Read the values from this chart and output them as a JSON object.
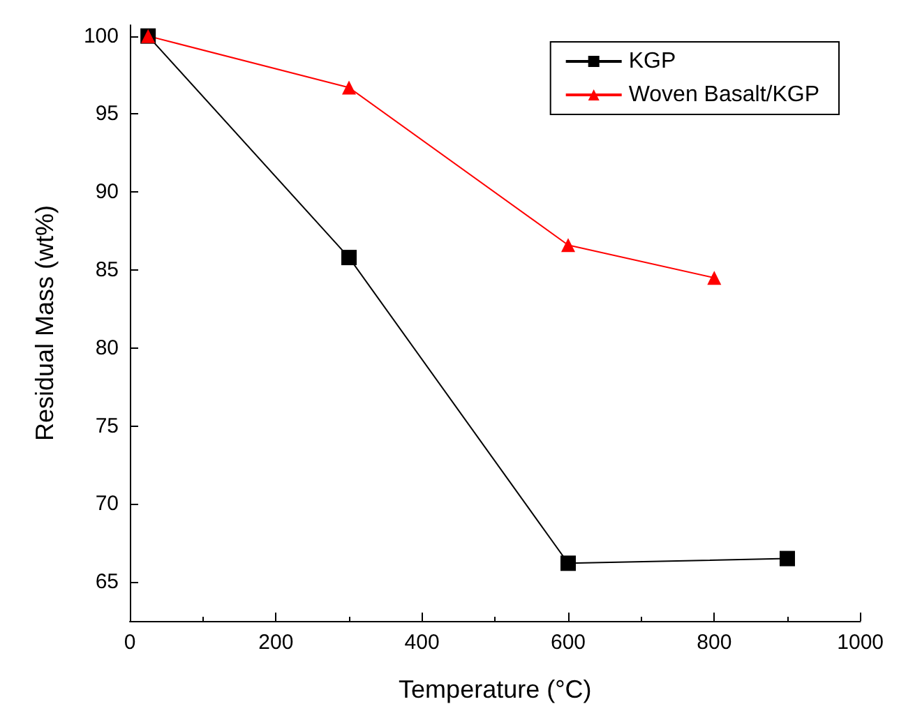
{
  "chart_data": {
    "type": "line",
    "xlabel": "Temperature (°C)",
    "ylabel": "Residual Mass (wt%)",
    "xlim": [
      0,
      1000
    ],
    "xticks": [
      0,
      200,
      400,
      600,
      800,
      1000
    ],
    "ylim": [
      62.5,
      100.7
    ],
    "yticks": [
      65,
      70,
      75,
      80,
      85,
      90,
      95,
      100
    ],
    "grid": false,
    "legend": "top right",
    "series": [
      {
        "name": "KGP",
        "color": "#000000",
        "marker": "square",
        "x": [
          25,
          300,
          600,
          900
        ],
        "values": [
          100,
          85.8,
          66.2,
          66.5
        ]
      },
      {
        "name": "Woven Basalt/KGP",
        "color": "#ff0000",
        "marker": "triangle",
        "x": [
          25,
          300,
          600,
          800
        ],
        "values": [
          100,
          96.7,
          86.6,
          84.5
        ]
      }
    ]
  }
}
